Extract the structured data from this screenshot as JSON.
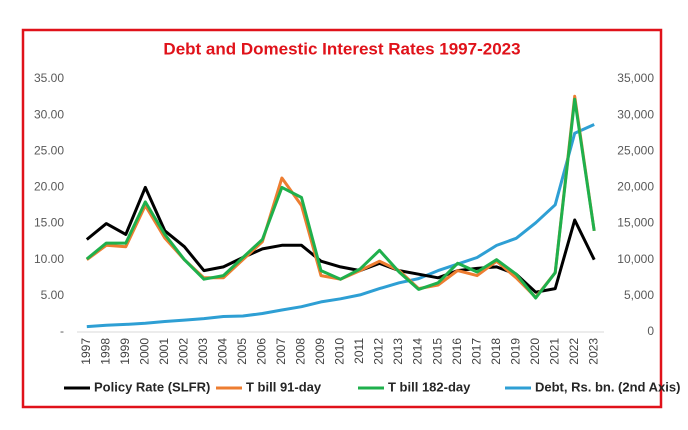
{
  "chart_data": {
    "type": "line",
    "title": "Debt and Domestic Interest Rates 1997-2023",
    "categories": [
      "1997",
      "1998",
      "1999",
      "2000",
      "2001",
      "2002",
      "2003",
      "2004",
      "2005",
      "2006",
      "2007",
      "2008",
      "2009",
      "2010",
      "2011",
      "2012",
      "2013",
      "2014",
      "2015",
      "2016",
      "2017",
      "2018",
      "2019",
      "2020",
      "2021",
      "2022",
      "2023"
    ],
    "series": [
      {
        "name": "Policy Rate (SLFR)",
        "color": "#000000",
        "values": [
          12.8,
          15,
          13.5,
          20,
          14,
          11.8,
          8.5,
          9,
          10.3,
          11.5,
          12,
          12,
          9.8,
          9,
          8.5,
          9.5,
          8.5,
          8,
          7.5,
          8.5,
          8.8,
          9,
          8,
          5.5,
          6,
          15.5,
          10
        ]
      },
      {
        "name": "T bill 91-day",
        "color": "#ed7d31",
        "values": [
          10,
          12,
          11.8,
          17.5,
          13,
          10,
          7.5,
          7.5,
          10,
          12.5,
          21.3,
          17.5,
          7.8,
          7.3,
          8.5,
          9.8,
          8.5,
          6,
          6.5,
          8.5,
          7.8,
          9.8,
          7.5,
          4.8,
          8.2,
          32.6,
          14
        ]
      },
      {
        "name": "T bill 182-day",
        "color": "#1fb04c",
        "values": [
          10.1,
          12.3,
          12.3,
          18,
          13.5,
          10,
          7.3,
          7.8,
          10.3,
          12.8,
          20,
          18.6,
          8.5,
          7.3,
          8.7,
          11.3,
          8.3,
          5.9,
          6.8,
          9.5,
          8.3,
          10,
          8,
          4.7,
          8.2,
          32.2,
          14
        ]
      },
      {
        "name": "Debt, Rs. bn. (2nd Axis)",
        "color": "#2e9fd4",
        "axis": "y2",
        "values": [
          750,
          920,
          1050,
          1220,
          1450,
          1650,
          1860,
          2140,
          2220,
          2560,
          3040,
          3500,
          4160,
          4590,
          5130,
          6000,
          6800,
          7390,
          8500,
          9400,
          10300,
          11980,
          12960,
          15100,
          17600,
          27500,
          28700
        ]
      }
    ],
    "ylim": [
      0,
      35
    ],
    "yticks": [
      {
        "value": 0,
        "label": "-"
      },
      {
        "value": 5,
        "label": "5.00"
      },
      {
        "value": 10,
        "label": "10.00"
      },
      {
        "value": 15,
        "label": "15.00"
      },
      {
        "value": 20,
        "label": "20.00"
      },
      {
        "value": 25,
        "label": "25.00"
      },
      {
        "value": 30,
        "label": "30.00"
      },
      {
        "value": 35,
        "label": "35.00"
      }
    ],
    "y2lim": [
      0,
      35000
    ],
    "y2ticks": [
      0,
      {
        "value": 5000,
        "label": "5,000"
      },
      {
        "value": 10000,
        "label": "10,000"
      },
      {
        "value": 15000,
        "label": "15,000"
      },
      {
        "value": 20000,
        "label": "20,000"
      },
      {
        "value": 25000,
        "label": "25,000"
      },
      {
        "value": 30000,
        "label": "30,000"
      },
      {
        "value": 35000,
        "label": "35,000"
      }
    ],
    "grid": false,
    "legend": "bottom"
  }
}
